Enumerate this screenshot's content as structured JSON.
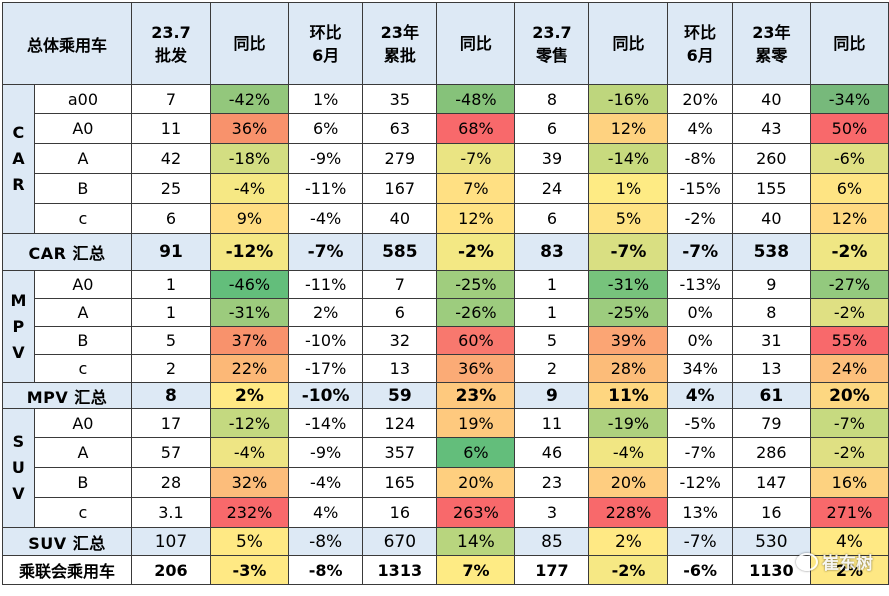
{
  "header": {
    "corner": "总体乘用车",
    "columns": [
      {
        "l1": "23.7",
        "l2": "批发"
      },
      {
        "l1": "同比",
        "l2": ""
      },
      {
        "l1": "环比",
        "l2": "6月"
      },
      {
        "l1": "23年",
        "l2": "累批"
      },
      {
        "l1": "同比",
        "l2": ""
      },
      {
        "l1": "23.7",
        "l2": "零售"
      },
      {
        "l1": "同比",
        "l2": ""
      },
      {
        "l1": "环比",
        "l2": "6月"
      },
      {
        "l1": "23年",
        "l2": "累零"
      },
      {
        "l1": "同比",
        "l2": ""
      }
    ]
  },
  "groups": [
    {
      "label": "C\nA\nR",
      "rows": [
        {
          "sub": "a00",
          "cells": [
            "7",
            "-42%",
            "1%",
            "35",
            "-48%",
            "8",
            "-16%",
            "20%",
            "40",
            "-34%"
          ],
          "bg": [
            "",
            "#93c77c",
            "",
            "",
            "#86c27a",
            "",
            "#bed67d",
            "",
            "",
            "#77b97b"
          ],
          "red": [
            2,
            7
          ]
        },
        {
          "sub": "A0",
          "cells": [
            "11",
            "36%",
            "6%",
            "63",
            "68%",
            "6",
            "12%",
            "4%",
            "43",
            "50%"
          ],
          "bg": [
            "",
            "#f8926c",
            "",
            "",
            "#f8696b",
            "",
            "#fed280",
            "",
            "",
            "#f8696b"
          ],
          "red": [
            2,
            7
          ]
        },
        {
          "sub": "A",
          "cells": [
            "42",
            "-18%",
            "-9%",
            "279",
            "-7%",
            "39",
            "-14%",
            "-8%",
            "260",
            "-6%"
          ],
          "bg": [
            "",
            "#d3de82",
            "",
            "",
            "#eae483",
            "",
            "#c8da7e",
            "",
            "",
            "#dfe083"
          ],
          "red": []
        },
        {
          "sub": "B",
          "cells": [
            "25",
            "-4%",
            "-11%",
            "167",
            "7%",
            "24",
            "1%",
            "-15%",
            "155",
            "6%"
          ],
          "bg": [
            "",
            "#f6e884",
            "",
            "",
            "#ffe083",
            "",
            "#feeb84",
            "",
            "",
            "#fee483"
          ],
          "red": []
        },
        {
          "sub": "c",
          "cells": [
            "6",
            "9%",
            "-4%",
            "40",
            "12%",
            "6",
            "5%",
            "-2%",
            "40",
            "12%"
          ],
          "bg": [
            "",
            "#ffdd82",
            "",
            "",
            "#ffe283",
            "",
            "#fee383",
            "",
            "",
            "#ffd981"
          ],
          "red": [
            2,
            7
          ]
        }
      ],
      "total": {
        "label": "CAR 汇总",
        "cells": [
          "91",
          "-12%",
          "-7%",
          "585",
          "-2%",
          "83",
          "-7%",
          "-7%",
          "538",
          "-2%"
        ],
        "red": [
          2
        ]
      }
    },
    {
      "label": "M\nP\nV",
      "rows": [
        {
          "sub": "A0",
          "cells": [
            "1",
            "-46%",
            "-11%",
            "7",
            "-25%",
            "1",
            "-31%",
            "-13%",
            "9",
            "-27%"
          ],
          "bg": [
            "",
            "#63be7b",
            "",
            "",
            "#a0cd7e",
            "",
            "#77c37c",
            "",
            "",
            "#93c97e"
          ],
          "red": []
        },
        {
          "sub": "A",
          "cells": [
            "1",
            "-31%",
            "2%",
            "6",
            "-26%",
            "1",
            "-25%",
            "0%",
            "8",
            "-2%"
          ],
          "bg": [
            "",
            "#9ccb7d",
            "",
            "",
            "#9dcc7e",
            "",
            "#9dcc7e",
            "",
            "",
            "#dfe083"
          ],
          "red": [
            2,
            7
          ]
        },
        {
          "sub": "B",
          "cells": [
            "5",
            "37%",
            "-10%",
            "32",
            "60%",
            "5",
            "39%",
            "0%",
            "31",
            "55%"
          ],
          "bg": [
            "",
            "#f8926c",
            "",
            "",
            "#f8786e",
            "",
            "#fba574",
            "",
            "",
            "#f8696b"
          ],
          "red": [
            7
          ]
        },
        {
          "sub": "c",
          "cells": [
            "2",
            "22%",
            "-17%",
            "13",
            "36%",
            "2",
            "28%",
            "34%",
            "13",
            "24%"
          ],
          "bg": [
            "",
            "#fcb877",
            "",
            "",
            "#fbab76",
            "",
            "#fcbc79",
            "",
            "",
            "#fdc07c"
          ],
          "red": [
            7
          ]
        }
      ],
      "total": {
        "label": "MPV 汇总",
        "cells": [
          "8",
          "2%",
          "-10%",
          "59",
          "23%",
          "9",
          "11%",
          "4%",
          "61",
          "20%"
        ],
        "red": [
          7
        ]
      }
    },
    {
      "label": "S\nU\nV",
      "rows": [
        {
          "sub": "A0",
          "cells": [
            "17",
            "-12%",
            "-14%",
            "124",
            "19%",
            "11",
            "-19%",
            "-5%",
            "79",
            "-7%"
          ],
          "bg": [
            "",
            "#c4d980",
            "",
            "",
            "#fec97e",
            "",
            "#aed17e",
            "",
            "",
            "#c7da80"
          ],
          "red": [
            7
          ]
        },
        {
          "sub": "A",
          "cells": [
            "57",
            "-4%",
            "-9%",
            "357",
            "6%",
            "46",
            "-4%",
            "-7%",
            "286",
            "-2%"
          ],
          "bg": [
            "",
            "#eee584",
            "",
            "",
            "#63be7b",
            "",
            "#f1e683",
            "",
            "",
            "#dfe083"
          ],
          "red": []
        },
        {
          "sub": "B",
          "cells": [
            "28",
            "32%",
            "-4%",
            "165",
            "20%",
            "23",
            "20%",
            "-12%",
            "147",
            "16%"
          ],
          "bg": [
            "",
            "#fcbd7b",
            "",
            "",
            "#fecf7f",
            "",
            "#fecd80",
            "",
            "",
            "#fdd280"
          ],
          "red": [
            2
          ]
        },
        {
          "sub": "c",
          "cells": [
            "3.1",
            "232%",
            "4%",
            "16",
            "263%",
            "3",
            "228%",
            "13%",
            "16",
            "271%"
          ],
          "bg": [
            "",
            "#f8696b",
            "",
            "",
            "#f8696b",
            "",
            "#f8696b",
            "",
            "",
            "#f8696b"
          ],
          "red": [
            2,
            7
          ]
        }
      ],
      "total": {
        "label": "SUV 汇总",
        "cells": [
          "107",
          "5%",
          "-8%",
          "670",
          "14%",
          "85",
          "2%",
          "-7%",
          "530",
          "4%"
        ],
        "red": [],
        "normal": true
      }
    }
  ],
  "grand": {
    "label": "乘联会乘用车",
    "cells": [
      "206",
      "-3%",
      "-8%",
      "1313",
      "7%",
      "177",
      "-2%",
      "-6%",
      "1130",
      "2%"
    ],
    "red": [
      0,
      5
    ]
  },
  "totals_bg": {
    "CAR": [
      "",
      "#f4e784",
      "",
      "",
      "#f3e884",
      "",
      "#d9df82",
      "",
      "",
      "#efe684"
    ],
    "MPV": [
      "",
      "#ffe984",
      "",
      "",
      "#fec97e",
      "",
      "#fed680",
      "",
      "",
      "#fdd781"
    ],
    "SUV": [
      "",
      "#ffe984",
      "",
      "",
      "#b8d57e",
      "",
      "#ffe984",
      "",
      "",
      "#ffe984"
    ],
    "grand": [
      "",
      "#ffe984",
      "",
      "",
      "#feeb84",
      "",
      "#f6e884",
      "",
      "",
      "#fee884"
    ]
  },
  "watermark": "崔东树",
  "colors": {
    "header_bg": "#dde9f5",
    "red_text": "#e8001a"
  }
}
